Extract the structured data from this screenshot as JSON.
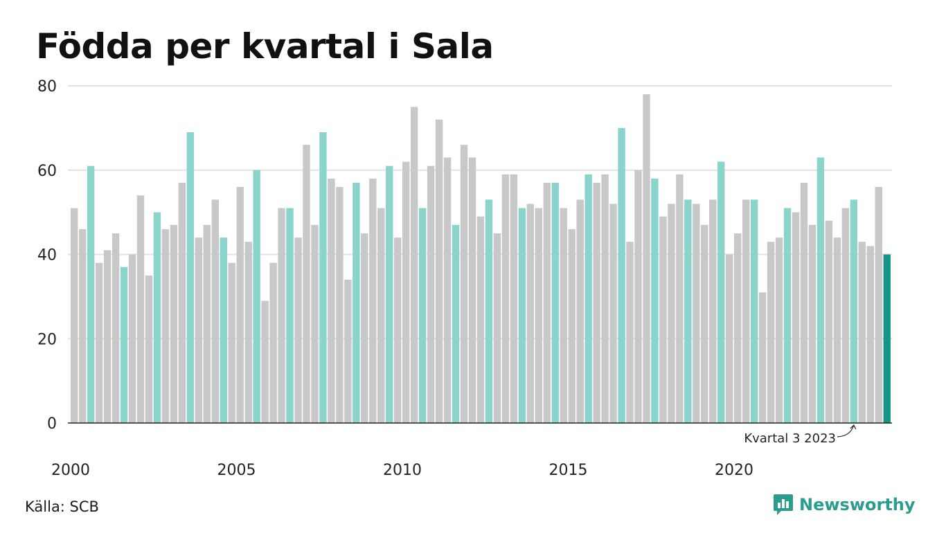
{
  "title": "Födda per kvartal i Sala",
  "source": "Källa: SCB",
  "brand": "Newsworthy",
  "colors": {
    "bar_default": "#c8c8c8",
    "bar_q3": "#8ad4cc",
    "bar_latest": "#17948a",
    "grid": "#e2e2e2",
    "axis": "#222222",
    "brand": "#2a9d8f"
  },
  "chart_data": {
    "type": "bar",
    "title": "Födda per kvartal i Sala",
    "xlabel": "",
    "ylabel": "",
    "ylim": [
      0,
      80
    ],
    "yticks": [
      0,
      20,
      40,
      60,
      80
    ],
    "grid": true,
    "legend": "none",
    "start_year": 2000,
    "year_ticks": [
      "2000",
      "2005",
      "2010",
      "2015",
      "2020"
    ],
    "annotation": "Kvartal 3 2023",
    "values": [
      51,
      46,
      61,
      38,
      41,
      45,
      37,
      40,
      54,
      35,
      50,
      46,
      47,
      57,
      69,
      44,
      47,
      53,
      44,
      38,
      56,
      43,
      60,
      29,
      38,
      51,
      51,
      44,
      66,
      47,
      69,
      58,
      56,
      34,
      57,
      45,
      58,
      51,
      61,
      44,
      62,
      75,
      51,
      61,
      72,
      63,
      47,
      66,
      63,
      49,
      53,
      45,
      59,
      59,
      51,
      52,
      51,
      57,
      57,
      51,
      46,
      53,
      59,
      57,
      59,
      52,
      70,
      43,
      60,
      78,
      58,
      49,
      52,
      59,
      53,
      52,
      47,
      53,
      62,
      40,
      45,
      53,
      53,
      31,
      43,
      44,
      51,
      50,
      57,
      47,
      63,
      48,
      44,
      51,
      53,
      43,
      42,
      56,
      40
    ]
  }
}
